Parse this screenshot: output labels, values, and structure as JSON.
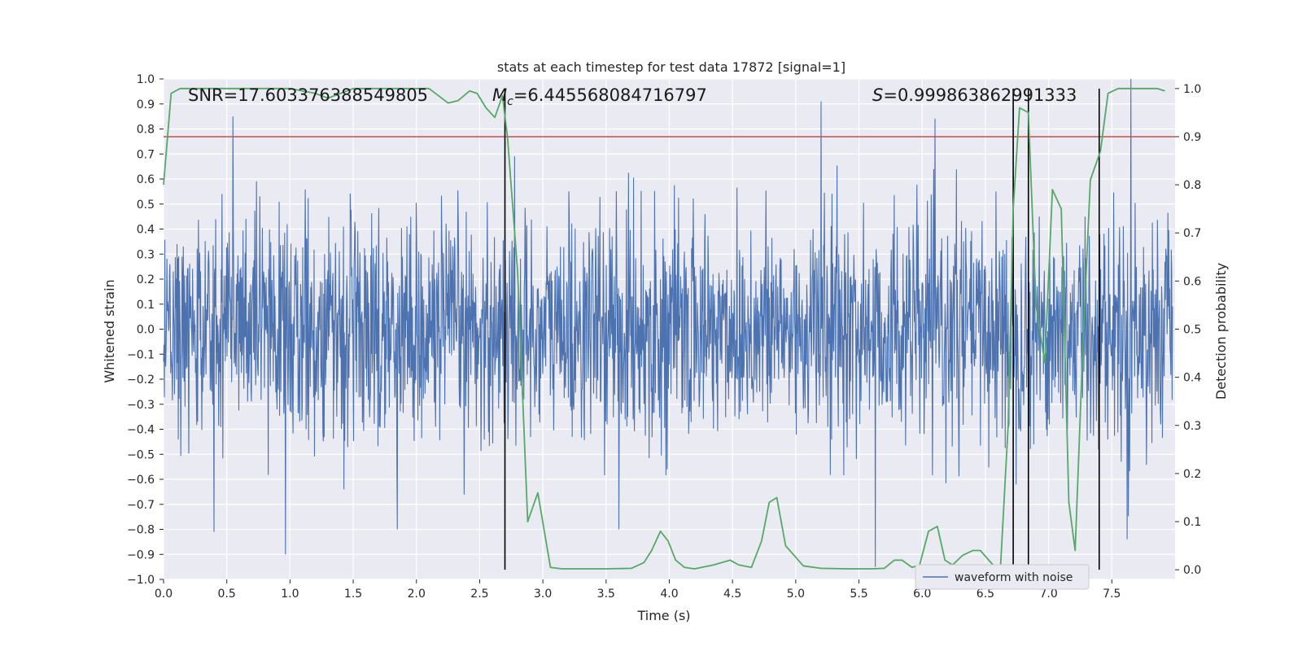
{
  "chart_data": {
    "type": "line",
    "title": "stats at each timestep for test data 17872 [signal=1]",
    "xlabel": "Time (s)",
    "ylabel_left": "Whitened strain",
    "ylabel_right": "Detection probability",
    "xlim": [
      0.0,
      8.0
    ],
    "ylim_left": [
      -1.0,
      1.0
    ],
    "ylim_right": [
      -0.02,
      1.02
    ],
    "x_ticks": [
      "0.0",
      "0.5",
      "1.0",
      "1.5",
      "2.0",
      "2.5",
      "3.0",
      "3.5",
      "4.0",
      "4.5",
      "5.0",
      "5.5",
      "6.0",
      "6.5",
      "7.0",
      "7.5"
    ],
    "x_tick_values": [
      0,
      0.5,
      1,
      1.5,
      2,
      2.5,
      3,
      3.5,
      4,
      4.5,
      5,
      5.5,
      6,
      6.5,
      7,
      7.5
    ],
    "y_left_ticks": [
      "1.0",
      "0.9",
      "0.8",
      "0.7",
      "0.6",
      "0.5",
      "0.4",
      "0.3",
      "0.2",
      "0.1",
      "0.0",
      "−0.1",
      "−0.2",
      "−0.3",
      "−0.4",
      "−0.5",
      "−0.6",
      "−0.7",
      "−0.8",
      "−0.9",
      "−1.0"
    ],
    "y_left_tick_values": [
      1.0,
      0.9,
      0.8,
      0.7,
      0.6,
      0.5,
      0.4,
      0.3,
      0.2,
      0.1,
      0.0,
      -0.1,
      -0.2,
      -0.3,
      -0.4,
      -0.5,
      -0.6,
      -0.7,
      -0.8,
      -0.9,
      -1.0
    ],
    "y_right_ticks": [
      "1.0",
      "0.9",
      "0.8",
      "0.7",
      "0.6",
      "0.5",
      "0.4",
      "0.3",
      "0.2",
      "0.1",
      "0.0"
    ],
    "y_right_tick_values": [
      1.0,
      0.9,
      0.8,
      0.7,
      0.6,
      0.5,
      0.4,
      0.3,
      0.2,
      0.1,
      0.0
    ],
    "annotations": {
      "snr": "SNR=17.603376388549805",
      "mc_symbol": "M",
      "mc_sub": "c",
      "mc_value": "=6.445568084716797",
      "s_symbol": "S",
      "s_value": "=0.999863862991333"
    },
    "legend": {
      "label": "waveform with noise",
      "position": "lower-right"
    },
    "grid": true,
    "threshold": {
      "axis": "right",
      "value": 0.9,
      "color": "#c44e52"
    },
    "vertical_lines": [
      2.7,
      6.72,
      6.84,
      7.4
    ],
    "waveform": {
      "name": "waveform with noise",
      "color": "#4c72b0",
      "t_start": 0.0,
      "t_end": 7.98,
      "typical_amplitude": 0.4,
      "peaks": [
        {
          "t": 0.4,
          "v": -0.81
        },
        {
          "t": 0.55,
          "v": 0.85
        },
        {
          "t": 1.85,
          "v": -0.8
        },
        {
          "t": 3.6,
          "v": -0.8
        },
        {
          "t": 5.2,
          "v": 0.91
        },
        {
          "t": 5.63,
          "v": -0.95
        },
        {
          "t": 7.65,
          "v": 1.0
        },
        {
          "t": 7.62,
          "v": -0.84
        }
      ]
    },
    "probability": {
      "color": "#55a868",
      "t": [
        0.0,
        0.06,
        0.13,
        0.3,
        0.5,
        0.7,
        0.85,
        1.0,
        1.1,
        1.2,
        1.3,
        1.5,
        1.7,
        1.9,
        2.1,
        2.25,
        2.33,
        2.42,
        2.48,
        2.55,
        2.62,
        2.68,
        2.72,
        2.8,
        2.88,
        2.96,
        3.06,
        3.15,
        3.3,
        3.5,
        3.7,
        3.8,
        3.86,
        3.93,
        3.99,
        4.05,
        4.12,
        4.2,
        4.35,
        4.48,
        4.55,
        4.65,
        4.73,
        4.79,
        4.85,
        4.92,
        5.06,
        5.2,
        5.4,
        5.6,
        5.7,
        5.78,
        5.84,
        5.92,
        5.98,
        6.05,
        6.12,
        6.18,
        6.24,
        6.32,
        6.4,
        6.46,
        6.56,
        6.62,
        6.68,
        6.72,
        6.77,
        6.84,
        6.9,
        6.97,
        7.03,
        7.1,
        7.16,
        7.21,
        7.27,
        7.33,
        7.41,
        7.47,
        7.55,
        7.68,
        7.8,
        7.86,
        7.92
      ],
      "p": [
        0.8,
        0.99,
        1.0,
        1.0,
        1.0,
        1.0,
        1.0,
        1.0,
        0.995,
        0.99,
        0.98,
        1.0,
        1.0,
        1.0,
        1.0,
        0.97,
        0.975,
        0.995,
        0.99,
        0.96,
        0.94,
        0.985,
        0.9,
        0.62,
        0.1,
        0.16,
        0.005,
        0.002,
        0.002,
        0.002,
        0.003,
        0.015,
        0.04,
        0.08,
        0.06,
        0.02,
        0.005,
        0.002,
        0.01,
        0.02,
        0.01,
        0.005,
        0.06,
        0.14,
        0.15,
        0.05,
        0.008,
        0.003,
        0.002,
        0.002,
        0.003,
        0.02,
        0.02,
        0.005,
        0.01,
        0.08,
        0.09,
        0.02,
        0.01,
        0.03,
        0.04,
        0.04,
        0.01,
        0.008,
        0.3,
        0.75,
        0.96,
        0.95,
        0.55,
        0.43,
        0.79,
        0.75,
        0.14,
        0.04,
        0.46,
        0.81,
        0.87,
        0.99,
        1.0,
        1.0,
        1.0,
        1.0,
        0.995
      ]
    }
  }
}
